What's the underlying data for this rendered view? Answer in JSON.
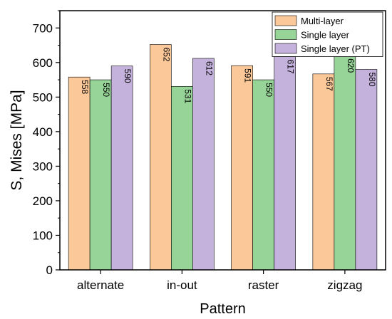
{
  "chart_data": {
    "type": "bar",
    "title": "",
    "xlabel": "Pattern",
    "ylabel": "S, Mises [MPa]",
    "categories": [
      "alternate",
      "in-out",
      "raster",
      "zigzag"
    ],
    "ylim": [
      0,
      750
    ],
    "yticks": [
      0,
      100,
      200,
      300,
      400,
      500,
      600,
      700
    ],
    "grid": false,
    "legend": {
      "placement": "top-right"
    },
    "series": [
      {
        "name": "Multi-layer",
        "color": "#FBC89A",
        "values": [
          558,
          652,
          591,
          567
        ]
      },
      {
        "name": "Single layer",
        "color": "#96D497",
        "values": [
          550,
          531,
          550,
          620
        ]
      },
      {
        "name": "Single layer (PT)",
        "color": "#C4B2DC",
        "values": [
          590,
          612,
          617,
          580
        ]
      }
    ]
  }
}
